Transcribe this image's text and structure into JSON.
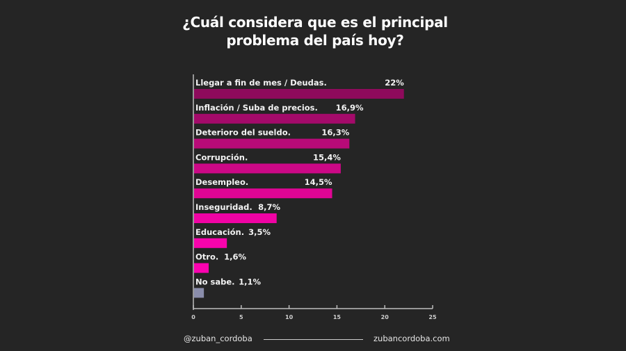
{
  "chart_data": {
    "type": "bar",
    "orientation": "horizontal",
    "title": "¿Cuál considera que es el  principal problema del país hoy?",
    "title_lines": [
      "¿Cuál considera que es el  principal",
      "problema del país hoy?"
    ],
    "categories": [
      "Llegar a fin de mes / Deudas.",
      "Inflación / Suba de precios.",
      "Deterioro del sueldo.",
      "Corrupción.",
      "Desempleo.",
      "Inseguridad.",
      "Educación.",
      "Otro.",
      "No sabe."
    ],
    "values": [
      22,
      16.9,
      16.3,
      15.4,
      14.5,
      8.7,
      3.5,
      1.6,
      1.1
    ],
    "value_labels": [
      "22%",
      "16,9%",
      "16,3%",
      "15,4%",
      "14,5%",
      "8,7%",
      "3,5%",
      "1,6%",
      "1,1%"
    ],
    "colors": [
      "#8e0a5c",
      "#a40a6a",
      "#b80a78",
      "#cc0886",
      "#e00594",
      "#f003a4",
      "#f803ac",
      "#fb02b0",
      "#8a8dab"
    ],
    "xlim": [
      0,
      25
    ],
    "xticks": [
      "0",
      "5",
      "10",
      "15",
      "20",
      "25"
    ],
    "grid": false,
    "xlabel": "",
    "ylabel": ""
  },
  "footer": {
    "handle": "@zuban_cordoba",
    "website": "zubancordoba.com"
  },
  "background": "#252525"
}
